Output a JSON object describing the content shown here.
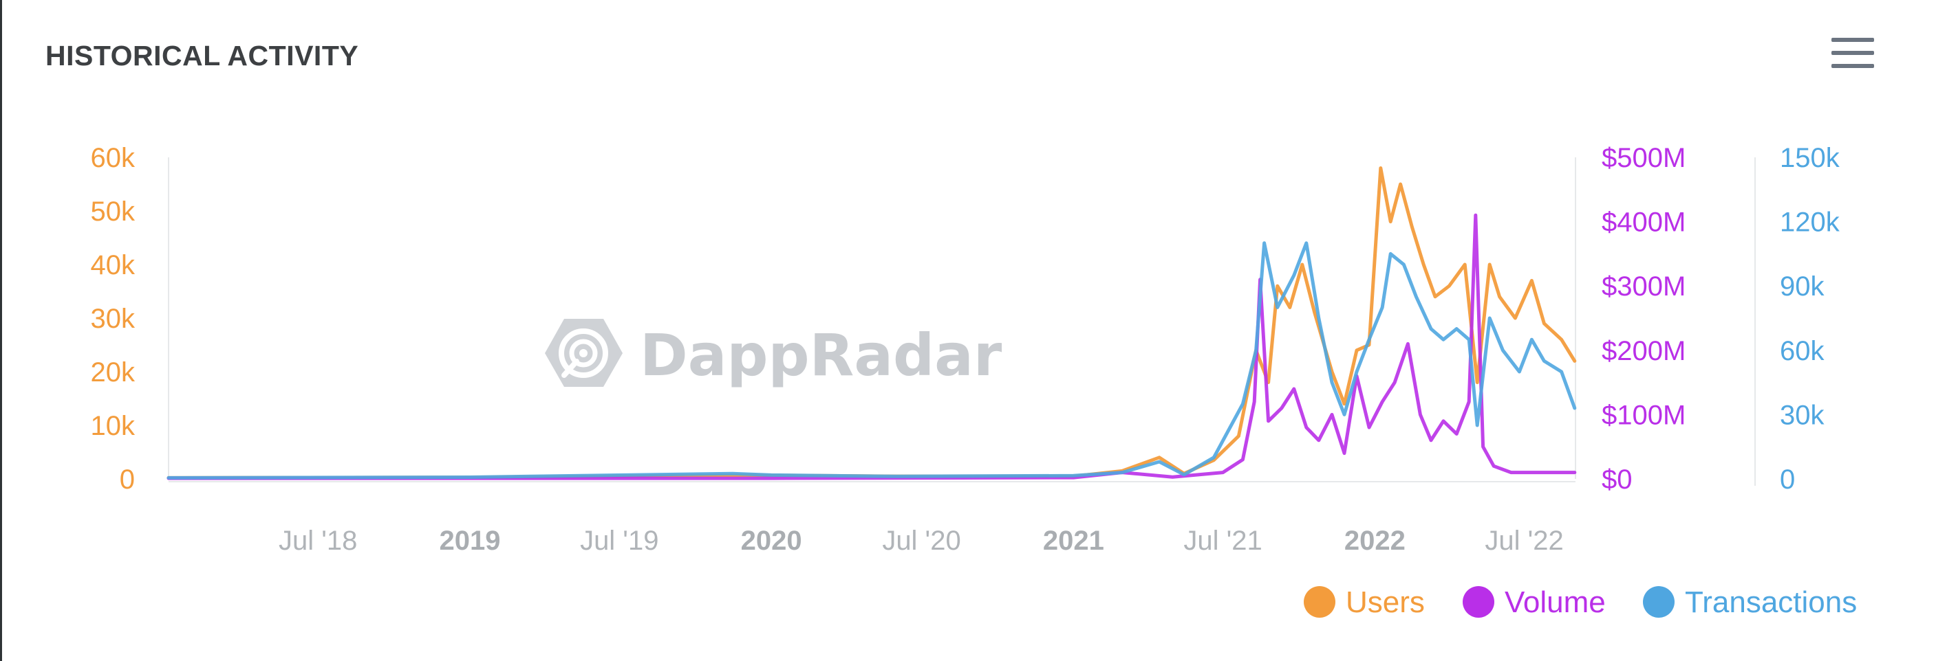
{
  "header": {
    "title": "HISTORICAL ACTIVITY",
    "menu_icon": "hamburger-menu-icon"
  },
  "watermark": {
    "text": "DappRadar",
    "icon": "dappradar-logo-icon"
  },
  "colors": {
    "users": "#f39c3c",
    "volume": "#b92fe8",
    "transactions": "#4fa6e0",
    "overlap": "#5b7ee0"
  },
  "chart_data": {
    "type": "line",
    "x_range": [
      "2018-01",
      "2022-09"
    ],
    "x_ticks": [
      {
        "label": "Jul '18",
        "date": "2018-07",
        "major": false
      },
      {
        "label": "2019",
        "date": "2019-01",
        "major": true
      },
      {
        "label": "Jul '19",
        "date": "2019-07",
        "major": false
      },
      {
        "label": "2020",
        "date": "2020-01",
        "major": true
      },
      {
        "label": "Jul '20",
        "date": "2020-07",
        "major": false
      },
      {
        "label": "2021",
        "date": "2021-01",
        "major": true
      },
      {
        "label": "Jul '21",
        "date": "2021-07",
        "major": false
      },
      {
        "label": "2022",
        "date": "2022-01",
        "major": true
      },
      {
        "label": "Jul '22",
        "date": "2022-07",
        "major": false
      }
    ],
    "axes": {
      "users": {
        "ticks": [
          "0",
          "10k",
          "20k",
          "30k",
          "40k",
          "50k",
          "60k"
        ],
        "range": [
          0,
          60000
        ]
      },
      "volume": {
        "ticks": [
          "$0",
          "$100M",
          "$200M",
          "$300M",
          "$400M",
          "$500M"
        ],
        "range": [
          0,
          500000000
        ]
      },
      "transactions": {
        "ticks": [
          "0",
          "30k",
          "60k",
          "90k",
          "120k",
          "150k"
        ],
        "range": [
          0,
          150000
        ]
      }
    },
    "legend_position": "bottom-right",
    "series": [
      {
        "name": "Users",
        "axis": "users",
        "points": [
          [
            "2018-01-01",
            200
          ],
          [
            "2019-01-01",
            300
          ],
          [
            "2019-12-01",
            700
          ],
          [
            "2020-06-01",
            500
          ],
          [
            "2021-01-01",
            500
          ],
          [
            "2021-03-01",
            1500
          ],
          [
            "2021-04-15",
            4000
          ],
          [
            "2021-05-15",
            1000
          ],
          [
            "2021-06-20",
            3500
          ],
          [
            "2021-07-20",
            8000
          ],
          [
            "2021-08-10",
            24000
          ],
          [
            "2021-08-25",
            18000
          ],
          [
            "2021-09-05",
            36000
          ],
          [
            "2021-09-20",
            32000
          ],
          [
            "2021-10-05",
            40000
          ],
          [
            "2021-10-20",
            31000
          ],
          [
            "2021-11-10",
            20000
          ],
          [
            "2021-11-25",
            14000
          ],
          [
            "2021-12-10",
            24000
          ],
          [
            "2021-12-25",
            25000
          ],
          [
            "2022-01-08",
            58000
          ],
          [
            "2022-01-20",
            48000
          ],
          [
            "2022-02-01",
            55000
          ],
          [
            "2022-02-15",
            47000
          ],
          [
            "2022-03-01",
            40000
          ],
          [
            "2022-03-15",
            34000
          ],
          [
            "2022-04-01",
            36000
          ],
          [
            "2022-04-20",
            40000
          ],
          [
            "2022-05-05",
            18000
          ],
          [
            "2022-05-20",
            40000
          ],
          [
            "2022-06-01",
            34000
          ],
          [
            "2022-06-20",
            30000
          ],
          [
            "2022-07-10",
            37000
          ],
          [
            "2022-07-25",
            29000
          ],
          [
            "2022-08-15",
            26000
          ],
          [
            "2022-08-31",
            22000
          ]
        ]
      },
      {
        "name": "Volume",
        "axis": "volume",
        "points": [
          [
            "2018-01-01",
            1000000
          ],
          [
            "2020-01-01",
            1000000
          ],
          [
            "2021-01-01",
            2000000
          ],
          [
            "2021-03-01",
            10000000
          ],
          [
            "2021-05-01",
            3000000
          ],
          [
            "2021-07-01",
            10000000
          ],
          [
            "2021-07-25",
            30000000
          ],
          [
            "2021-08-08",
            120000000
          ],
          [
            "2021-08-15",
            310000000
          ],
          [
            "2021-08-25",
            90000000
          ],
          [
            "2021-09-10",
            110000000
          ],
          [
            "2021-09-25",
            140000000
          ],
          [
            "2021-10-10",
            80000000
          ],
          [
            "2021-10-25",
            60000000
          ],
          [
            "2021-11-10",
            100000000
          ],
          [
            "2021-11-25",
            40000000
          ],
          [
            "2021-12-10",
            160000000
          ],
          [
            "2021-12-25",
            80000000
          ],
          [
            "2022-01-10",
            120000000
          ],
          [
            "2022-01-25",
            150000000
          ],
          [
            "2022-02-10",
            210000000
          ],
          [
            "2022-02-25",
            100000000
          ],
          [
            "2022-03-10",
            60000000
          ],
          [
            "2022-03-25",
            90000000
          ],
          [
            "2022-04-10",
            70000000
          ],
          [
            "2022-04-25",
            120000000
          ],
          [
            "2022-05-03",
            410000000
          ],
          [
            "2022-05-12",
            50000000
          ],
          [
            "2022-05-25",
            20000000
          ],
          [
            "2022-06-15",
            10000000
          ],
          [
            "2022-07-15",
            10000000
          ],
          [
            "2022-08-31",
            10000000
          ]
        ]
      },
      {
        "name": "Transactions",
        "axis": "transactions",
        "points": [
          [
            "2018-01-01",
            500
          ],
          [
            "2019-01-01",
            800
          ],
          [
            "2019-11-15",
            2500
          ],
          [
            "2020-01-01",
            1800
          ],
          [
            "2020-06-01",
            1200
          ],
          [
            "2021-01-01",
            1500
          ],
          [
            "2021-03-01",
            3000
          ],
          [
            "2021-04-15",
            8000
          ],
          [
            "2021-05-15",
            2000
          ],
          [
            "2021-06-20",
            10000
          ],
          [
            "2021-07-25",
            35000
          ],
          [
            "2021-08-10",
            60000
          ],
          [
            "2021-08-20",
            110000
          ],
          [
            "2021-09-05",
            80000
          ],
          [
            "2021-09-25",
            95000
          ],
          [
            "2021-10-10",
            110000
          ],
          [
            "2021-10-25",
            75000
          ],
          [
            "2021-11-10",
            45000
          ],
          [
            "2021-11-25",
            30000
          ],
          [
            "2021-12-10",
            50000
          ],
          [
            "2021-12-25",
            65000
          ],
          [
            "2022-01-10",
            80000
          ],
          [
            "2022-01-20",
            105000
          ],
          [
            "2022-02-05",
            100000
          ],
          [
            "2022-02-20",
            85000
          ],
          [
            "2022-03-10",
            70000
          ],
          [
            "2022-03-25",
            65000
          ],
          [
            "2022-04-10",
            70000
          ],
          [
            "2022-04-25",
            65000
          ],
          [
            "2022-05-05",
            25000
          ],
          [
            "2022-05-20",
            75000
          ],
          [
            "2022-06-05",
            60000
          ],
          [
            "2022-06-25",
            50000
          ],
          [
            "2022-07-10",
            65000
          ],
          [
            "2022-07-25",
            55000
          ],
          [
            "2022-08-15",
            50000
          ],
          [
            "2022-08-31",
            33000
          ]
        ]
      }
    ]
  }
}
